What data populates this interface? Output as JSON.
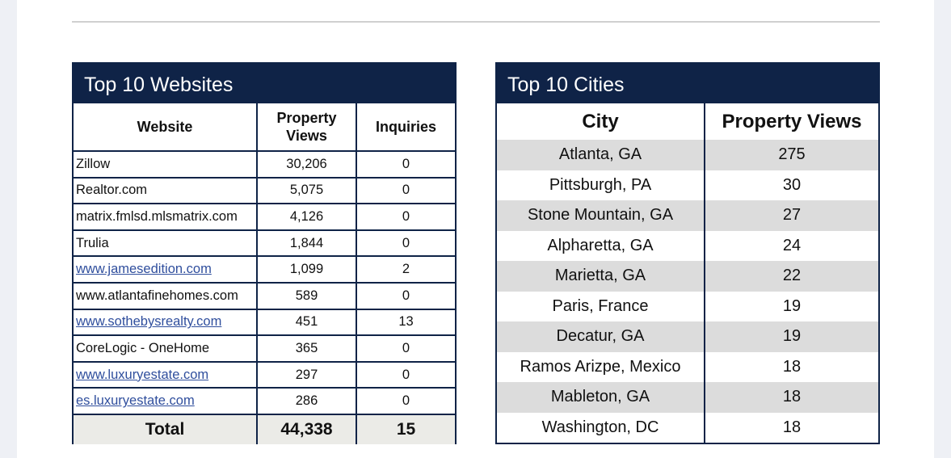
{
  "websites": {
    "title": "Top 10 Websites",
    "headers": [
      "Website",
      "Property Views",
      "Inquiries"
    ],
    "rows": [
      {
        "site": "Zillow",
        "views": "30,206",
        "inquiries": "0",
        "link": false
      },
      {
        "site": "Realtor.com",
        "views": "5,075",
        "inquiries": "0",
        "link": false
      },
      {
        "site": "matrix.fmlsd.mlsmatrix.com",
        "views": "4,126",
        "inquiries": "0",
        "link": false
      },
      {
        "site": "Trulia",
        "views": "1,844",
        "inquiries": "0",
        "link": false
      },
      {
        "site": "www.jamesedition.com",
        "views": "1,099",
        "inquiries": "2",
        "link": true
      },
      {
        "site": "www.atlantafinehomes.com",
        "views": "589",
        "inquiries": "0",
        "link": false
      },
      {
        "site": "www.sothebysrealty.com",
        "views": "451",
        "inquiries": "13",
        "link": true
      },
      {
        "site": "CoreLogic - OneHome",
        "views": "365",
        "inquiries": "0",
        "link": false
      },
      {
        "site": "www.luxuryestate.com",
        "views": "297",
        "inquiries": "0",
        "link": true
      },
      {
        "site": "es.luxuryestate.com",
        "views": "286",
        "inquiries": "0",
        "link": true
      }
    ],
    "total": {
      "label": "Total",
      "views": "44,338",
      "inquiries": "15"
    }
  },
  "cities": {
    "title": "Top 10 Cities",
    "headers": [
      "City",
      "Property Views"
    ],
    "rows": [
      {
        "city": "Atlanta, GA",
        "views": "275"
      },
      {
        "city": "Pittsburgh, PA",
        "views": "30"
      },
      {
        "city": "Stone Mountain, GA",
        "views": "27"
      },
      {
        "city": "Alpharetta, GA",
        "views": "24"
      },
      {
        "city": "Marietta, GA",
        "views": "22"
      },
      {
        "city": "Paris, France",
        "views": "19"
      },
      {
        "city": "Decatur, GA",
        "views": "19"
      },
      {
        "city": "Ramos Arizpe, Mexico",
        "views": "18"
      },
      {
        "city": "Mableton, GA",
        "views": "18"
      },
      {
        "city": "Washington, DC",
        "views": "18"
      }
    ]
  },
  "colors": {
    "header_bg": "#0f2347",
    "row_shade": "#dcdcdc",
    "total_bg": "#ebebe7",
    "link": "#2f4e9d"
  }
}
